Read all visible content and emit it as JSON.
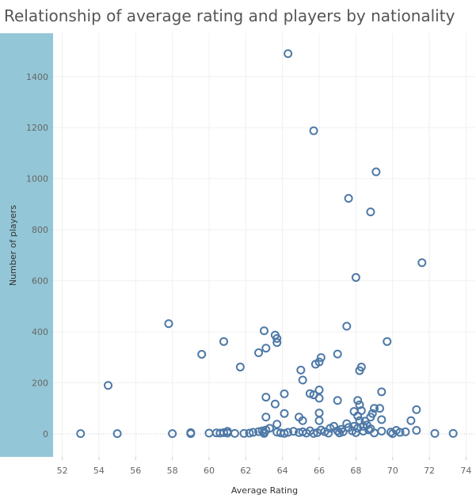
{
  "chart_data": {
    "type": "scatter",
    "title": "Relationship of average rating and players by nationality",
    "xlabel": "Average Rating",
    "ylabel": "Number of players",
    "xlim": [
      51.5,
      74.5
    ],
    "ylim": [
      -90,
      1570
    ],
    "x_ticks": [
      52,
      54,
      56,
      58,
      60,
      62,
      64,
      66,
      68,
      70,
      72,
      74
    ],
    "y_ticks": [
      0,
      200,
      400,
      600,
      800,
      1000,
      1200,
      1400
    ],
    "grid": true,
    "colors": {
      "marker": "#4e79a7",
      "yaxis_band": "#93c6d6"
    },
    "points": [
      [
        53.0,
        1
      ],
      [
        55.0,
        1
      ],
      [
        58.0,
        1
      ],
      [
        59.0,
        1
      ],
      [
        59.0,
        5
      ],
      [
        60.0,
        3
      ],
      [
        60.4,
        4
      ],
      [
        60.6,
        3
      ],
      [
        60.8,
        5
      ],
      [
        61.0,
        3
      ],
      [
        61.0,
        10
      ],
      [
        61.4,
        2
      ],
      [
        61.9,
        2
      ],
      [
        62.2,
        3
      ],
      [
        62.4,
        6
      ],
      [
        62.7,
        9
      ],
      [
        62.9,
        12
      ],
      [
        63.0,
        2
      ],
      [
        63.0,
        6
      ],
      [
        63.1,
        15
      ],
      [
        63.3,
        22
      ],
      [
        63.7,
        7
      ],
      [
        63.9,
        4
      ],
      [
        64.1,
        2
      ],
      [
        64.3,
        6
      ],
      [
        64.6,
        10
      ],
      [
        64.9,
        5
      ],
      [
        65.1,
        8
      ],
      [
        65.3,
        3
      ],
      [
        65.5,
        12
      ],
      [
        65.7,
        2
      ],
      [
        65.9,
        5
      ],
      [
        66.1,
        15
      ],
      [
        66.3,
        9
      ],
      [
        66.5,
        3
      ],
      [
        66.6,
        22
      ],
      [
        66.8,
        30
      ],
      [
        67.0,
        12
      ],
      [
        67.1,
        4
      ],
      [
        67.2,
        18
      ],
      [
        67.3,
        8
      ],
      [
        67.5,
        40
      ],
      [
        67.6,
        25
      ],
      [
        67.8,
        12
      ],
      [
        67.9,
        30
      ],
      [
        68.0,
        5
      ],
      [
        68.1,
        22
      ],
      [
        68.4,
        11
      ],
      [
        68.7,
        16
      ],
      [
        69.0,
        4
      ],
      [
        69.4,
        11
      ],
      [
        69.9,
        7
      ],
      [
        70.0,
        1
      ],
      [
        70.2,
        14
      ],
      [
        70.4,
        6
      ],
      [
        70.7,
        8
      ],
      [
        71.3,
        14
      ],
      [
        72.3,
        2
      ],
      [
        73.3,
        2
      ],
      [
        54.5,
        190
      ],
      [
        57.8,
        432
      ],
      [
        59.6,
        312
      ],
      [
        60.8,
        362
      ],
      [
        61.7,
        262
      ],
      [
        62.7,
        318
      ],
      [
        63.0,
        404
      ],
      [
        63.1,
        336
      ],
      [
        63.6,
        387
      ],
      [
        63.7,
        374
      ],
      [
        63.7,
        358
      ],
      [
        63.1,
        144
      ],
      [
        63.6,
        117
      ],
      [
        64.1,
        80
      ],
      [
        64.1,
        157
      ],
      [
        63.1,
        66
      ],
      [
        63.7,
        38
      ],
      [
        64.9,
        66
      ],
      [
        65.0,
        250
      ],
      [
        65.1,
        211
      ],
      [
        65.1,
        52
      ],
      [
        65.5,
        158
      ],
      [
        65.7,
        153
      ],
      [
        65.8,
        273
      ],
      [
        66.0,
        282
      ],
      [
        66.1,
        299
      ],
      [
        66.0,
        172
      ],
      [
        66.0,
        140
      ],
      [
        66.0,
        82
      ],
      [
        66.0,
        52
      ],
      [
        67.0,
        313
      ],
      [
        67.0,
        131
      ],
      [
        67.5,
        422
      ],
      [
        68.2,
        248
      ],
      [
        68.3,
        262
      ],
      [
        69.7,
        362
      ],
      [
        69.4,
        165
      ],
      [
        68.1,
        131
      ],
      [
        68.2,
        114
      ],
      [
        68.3,
        91
      ],
      [
        68.5,
        50
      ],
      [
        68.8,
        66
      ],
      [
        69.0,
        100
      ],
      [
        69.3,
        100
      ],
      [
        69.4,
        56
      ],
      [
        68.9,
        80
      ],
      [
        68.6,
        35
      ],
      [
        68.8,
        20
      ],
      [
        71.0,
        52
      ],
      [
        71.3,
        95
      ],
      [
        67.9,
        88
      ],
      [
        68.1,
        70
      ],
      [
        68.2,
        52
      ],
      [
        68.4,
        30
      ],
      [
        64.3,
        1490
      ],
      [
        65.7,
        1188
      ],
      [
        69.1,
        1027
      ],
      [
        67.6,
        923
      ],
      [
        68.8,
        870
      ],
      [
        71.6,
        671
      ],
      [
        68.0,
        613
      ]
    ]
  }
}
